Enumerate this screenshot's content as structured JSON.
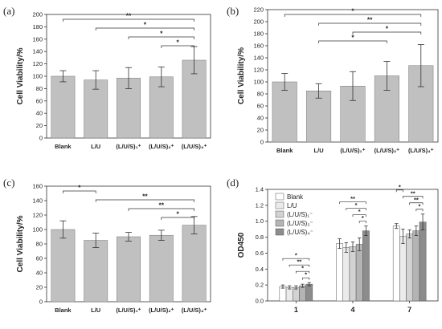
{
  "chart_data": [
    {
      "panel": "(a)",
      "type": "bar",
      "ylabel": "Cell Viability/%",
      "ylim": [
        0,
        200
      ],
      "yticks": [
        "0",
        "20",
        "40",
        "60",
        "80",
        "100",
        "120",
        "140",
        "160",
        "180",
        "200"
      ],
      "categories": [
        "Blank",
        "L/U",
        "(L/U/S)₁⁺",
        "(L/U/S)₂⁺",
        "(L/U/S)₄⁺"
      ],
      "values": [
        100,
        94,
        97,
        99,
        126
      ],
      "errors": [
        9,
        15,
        17,
        16,
        22
      ],
      "significance": [
        {
          "from": 0,
          "to": 4,
          "label": "**"
        },
        {
          "from": 1,
          "to": 4,
          "label": "*"
        },
        {
          "from": 2,
          "to": 4,
          "label": "*"
        },
        {
          "from": 3,
          "to": 4,
          "label": "*"
        }
      ],
      "bar_color": "#c0c0c0"
    },
    {
      "panel": "(b)",
      "type": "bar",
      "ylabel": "Cell Viability/%",
      "ylim": [
        0,
        220
      ],
      "yticks": [
        "0",
        "20",
        "40",
        "60",
        "80",
        "100",
        "120",
        "140",
        "160",
        "180",
        "200",
        "220"
      ],
      "categories": [
        "Blank",
        "L/U",
        "(L/U/S)₁⁺",
        "(L/U/S)₂⁺",
        "(L/U/S)₄⁺"
      ],
      "values": [
        100,
        85,
        93,
        110,
        127
      ],
      "errors": [
        14,
        12,
        24,
        24,
        35
      ],
      "significance": [
        {
          "from": 0,
          "to": 4,
          "label": "*"
        },
        {
          "from": 1,
          "to": 4,
          "label": "**"
        },
        {
          "from": 2,
          "to": 4,
          "label": "*"
        },
        {
          "from": 1,
          "to": 3,
          "label": "*"
        }
      ],
      "bar_color": "#c0c0c0"
    },
    {
      "panel": "(c)",
      "type": "bar",
      "ylabel": "Cell Viability/%",
      "ylim": [
        0,
        160
      ],
      "yticks": [
        "0",
        "20",
        "40",
        "60",
        "80",
        "100",
        "120",
        "140",
        "160"
      ],
      "categories": [
        "Blank",
        "L/U",
        "(L/U/S)₁⁺",
        "(L/U/S)₂⁺",
        "(L/U/S)₄⁺"
      ],
      "values": [
        100,
        85,
        90,
        92,
        106
      ],
      "errors": [
        12,
        10,
        6,
        7,
        12
      ],
      "significance": [
        {
          "from": 0,
          "to": 1,
          "label": "*"
        },
        {
          "from": 1,
          "to": 4,
          "label": "**"
        },
        {
          "from": 2,
          "to": 4,
          "label": "**"
        },
        {
          "from": 3,
          "to": 4,
          "label": "*"
        }
      ],
      "bar_color": "#c0c0c0"
    },
    {
      "panel": "(d)",
      "type": "bar",
      "ylabel": "OD450",
      "ylim": [
        0,
        1.4
      ],
      "yticks": [
        "0.0",
        "0.2",
        "0.4",
        "0.6",
        "0.8",
        "1.0",
        "1.2",
        "1.4"
      ],
      "categories": [
        "1",
        "4",
        "7"
      ],
      "legend_position": "top-left",
      "series": [
        {
          "name": "Blank",
          "color": "#ffffff",
          "values": [
            0.18,
            0.72,
            0.94
          ],
          "errors": [
            0.02,
            0.06,
            0.03
          ]
        },
        {
          "name": "L/U",
          "color": "#ebebeb",
          "values": [
            0.17,
            0.67,
            0.81
          ],
          "errors": [
            0.02,
            0.06,
            0.09
          ]
        },
        {
          "name": "(L/U/S)₁⁻",
          "color": "#d2d2d2",
          "values": [
            0.17,
            0.68,
            0.84
          ],
          "errors": [
            0.02,
            0.06,
            0.05
          ]
        },
        {
          "name": "(L/U/S)₂⁻",
          "color": "#b4b4b4",
          "values": [
            0.19,
            0.71,
            0.88
          ],
          "errors": [
            0.02,
            0.08,
            0.06
          ]
        },
        {
          "name": "(L/U/S)₄⁻",
          "color": "#8c8c8c",
          "values": [
            0.21,
            0.88,
            0.99
          ],
          "errors": [
            0.02,
            0.06,
            0.1
          ]
        }
      ],
      "significance": [
        {
          "group": 0,
          "from": 0,
          "to": 4,
          "label": "*"
        },
        {
          "group": 0,
          "from": 1,
          "to": 4,
          "label": "**"
        },
        {
          "group": 0,
          "from": 2,
          "to": 4,
          "label": "*"
        },
        {
          "group": 0,
          "from": 3,
          "to": 4,
          "label": "*"
        },
        {
          "group": 1,
          "from": 0,
          "to": 4,
          "label": "**"
        },
        {
          "group": 1,
          "from": 1,
          "to": 4,
          "label": "*"
        },
        {
          "group": 1,
          "from": 2,
          "to": 4,
          "label": "*"
        },
        {
          "group": 1,
          "from": 3,
          "to": 4,
          "label": "*"
        },
        {
          "group": 2,
          "from": 0,
          "to": 1,
          "label": "*"
        },
        {
          "group": 2,
          "from": 1,
          "to": 4,
          "label": "**"
        },
        {
          "group": 2,
          "from": 2,
          "to": 4,
          "label": "**"
        },
        {
          "group": 2,
          "from": 3,
          "to": 4,
          "label": "*"
        }
      ]
    }
  ]
}
